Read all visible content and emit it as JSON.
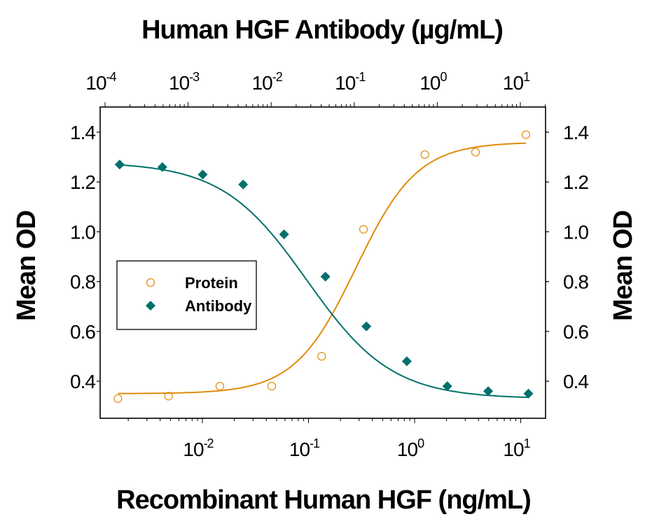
{
  "chart_data": {
    "type": "scatter",
    "title": "Human HGF Antibody (µg/mL)",
    "xlabel": "Recombinant Human HGF (ng/mL)",
    "x2label": "Human HGF Antibody (µg/mL)",
    "ylabel": "Mean OD",
    "y2label": "Mean OD",
    "xscale": "log",
    "x2scale": "log",
    "xlim": [
      0.0015,
      13
    ],
    "x2lim": [
      0.0001,
      10
    ],
    "ylim": [
      0.25,
      1.5
    ],
    "yticks": [
      0.4,
      0.6,
      0.8,
      1.0,
      1.2,
      1.4
    ],
    "ytick_labels": [
      "0.4",
      "0.6",
      "0.8",
      "1.0",
      "1.2",
      "1.4"
    ],
    "xticks": [
      {
        "base": "10",
        "exp": "-2"
      },
      {
        "base": "10",
        "exp": "-1"
      },
      {
        "base": "10",
        "exp": "0"
      },
      {
        "base": "10",
        "exp": "1"
      }
    ],
    "x2ticks": [
      {
        "base": "10",
        "exp": "-4"
      },
      {
        "base": "10",
        "exp": "-3"
      },
      {
        "base": "10",
        "exp": "-2"
      },
      {
        "base": "10",
        "exp": "-1"
      },
      {
        "base": "10",
        "exp": "0"
      },
      {
        "base": "10",
        "exp": "1"
      }
    ],
    "grid": false,
    "legend_position": "inside-left",
    "series": [
      {
        "name": "Protein",
        "axis": "bottom",
        "marker": "open-circle",
        "color": "#E08A0B",
        "fit": "4PL sigmoid (increasing)",
        "x": [
          0.0016,
          0.0048,
          0.0146,
          0.045,
          0.133,
          0.33,
          1.25,
          3.75,
          11.2
        ],
        "y": [
          0.33,
          0.34,
          0.38,
          0.38,
          0.5,
          1.01,
          1.31,
          1.32,
          1.39
        ],
        "fit_params": {
          "bottom": 0.35,
          "top": 1.36,
          "ec50": 0.28,
          "hill": 1.5
        }
      },
      {
        "name": "Antibody",
        "axis": "top",
        "marker": "filled-diamond",
        "color": "#00706A",
        "fit": "4PL sigmoid (decreasing)",
        "x": [
          0.00015,
          0.00049,
          0.0015,
          0.0046,
          0.0143,
          0.045,
          0.14,
          0.43,
          1.32,
          4.1,
          12.5
        ],
        "y": [
          1.27,
          1.26,
          1.23,
          1.19,
          0.99,
          0.82,
          0.62,
          0.48,
          0.38,
          0.36,
          0.35
        ],
        "fit_params": {
          "bottom": 0.33,
          "top": 1.28,
          "ec50": 0.027,
          "hill": 0.85
        }
      }
    ]
  },
  "legend": {
    "items": [
      {
        "label": "Protein",
        "marker": "open-circle",
        "color": "#E08A0B"
      },
      {
        "label": "Antibody",
        "marker": "filled-diamond",
        "color": "#00706A"
      }
    ]
  },
  "colors": {
    "protein": "#E08A0B",
    "antibody": "#00706A",
    "axis": "#000000",
    "background": "#FFFFFF"
  }
}
